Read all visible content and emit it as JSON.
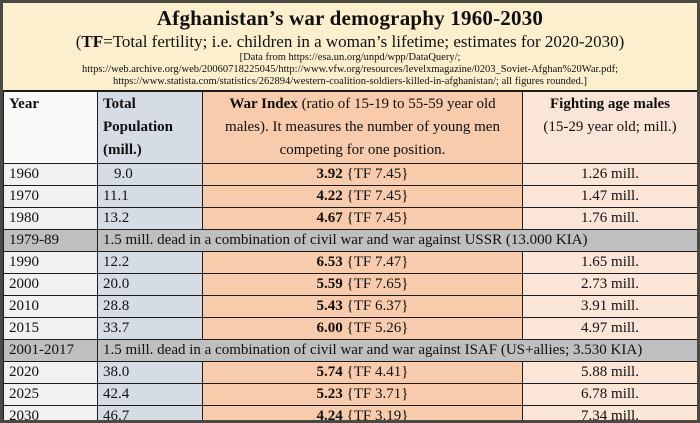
{
  "title": "Afghanistan’s war demography 1960-2030",
  "subtitle": {
    "prefix": "(",
    "bold": "TF",
    "rest": "=Total fertility; i.e. children in a woman’s lifetime; estimates for 2020-2030)"
  },
  "sources": {
    "line1": "[Data from https://esa.un.org/unpd/wpp/DataQuery/;",
    "line2": "https://web.archive.org/web/20060718225045/http://www.vfw.org/resources/levelxmagazine/0203_Soviet-Afghan%20War.pdf;",
    "line3": "https://www.statista.com/statistics/262894/western-coalition-soldiers-killed-in-afghanistan/; all figures rounded.]"
  },
  "colors": {
    "page_background": "#FBEFCD",
    "year_column": "#F1F1F0",
    "population_column": "#D6DCE4",
    "war_index_column": "#F8CBAD",
    "fighting_column": "#FBE5D6",
    "war_period_band": "#BFBFBF",
    "border": "#1c1c1c"
  },
  "table": {
    "headers": {
      "year": "Year",
      "population": "Total Population (mill.)",
      "war_index_bold": "War Index",
      "war_index_rest": " (ratio of 15-19 to 55-59 year old males). It measures the number of young men competing for one position.",
      "fighting_bold": "Fighting age males",
      "fighting_rest": "(15-29 year old; mill.)"
    },
    "rows": [
      {
        "year": "1960",
        "population": "9.0",
        "war_index": "3.92",
        "tf": "{TF 7.45}",
        "fighting": "1.26 mill."
      },
      {
        "year": "1970",
        "population": "11.1",
        "war_index": "4.22",
        "tf": "{TF 7.45}",
        "fighting": "1.47 mill."
      },
      {
        "year": "1980",
        "population": "13.2",
        "war_index": "4.67",
        "tf": "{TF 7.45}",
        "fighting": "1.76 mill."
      },
      {
        "year": "1979-89",
        "note": "1.5 mill. dead in a combination of civil war and war against USSR (13.000 KIA)"
      },
      {
        "year": "1990",
        "population": "12.2",
        "war_index": "6.53",
        "tf": "{TF 7.47}",
        "fighting": "1.65 mill."
      },
      {
        "year": "2000",
        "population": "20.0",
        "war_index": "5.59",
        "tf": "{TF 7.65}",
        "fighting": "2.73 mill."
      },
      {
        "year": "2010",
        "population": "28.8",
        "war_index": "5.43",
        "tf": "{TF 6.37}",
        "fighting": "3.91 mill."
      },
      {
        "year": "2015",
        "population": "33.7",
        "war_index": "6.00",
        "tf": "{TF 5.26}",
        "fighting": "4.97 mill."
      },
      {
        "year": "2001-2017",
        "note": "1.5 mill. dead in a combination of civil war and war against ISAF (US+allies; 3.530 KIA)"
      },
      {
        "year": "2020",
        "population": "38.0",
        "war_index": "5.74",
        "tf": "{TF 4.41}",
        "fighting": "5.88 mill."
      },
      {
        "year": "2025",
        "population": "42.4",
        "war_index": "5.23",
        "tf": "{TF 3.71}",
        "fighting": "6.78 mill."
      },
      {
        "year": "2030",
        "population": "46.7",
        "war_index": "4.24",
        "tf": "{TF 3.19}",
        "fighting": "7.34 mill."
      }
    ]
  },
  "chart_data": {
    "type": "table",
    "title": "Afghanistan’s war demography 1960-2030",
    "columns": [
      "Year",
      "Total Population (mill.)",
      "War Index",
      "Total fertility (TF)",
      "Fighting age males 15-29 (mill.)"
    ],
    "x": [
      1960,
      1970,
      1980,
      1990,
      2000,
      2010,
      2015,
      2020,
      2025,
      2030
    ],
    "series": [
      {
        "name": "Total Population (mill.)",
        "values": [
          9.0,
          11.1,
          13.2,
          12.2,
          20.0,
          28.8,
          33.7,
          38.0,
          42.4,
          46.7
        ]
      },
      {
        "name": "War Index",
        "values": [
          3.92,
          4.22,
          4.67,
          6.53,
          5.59,
          5.43,
          6.0,
          5.74,
          5.23,
          4.24
        ]
      },
      {
        "name": "Total fertility (TF)",
        "values": [
          7.45,
          7.45,
          7.45,
          7.47,
          7.65,
          6.37,
          5.26,
          4.41,
          3.71,
          3.19
        ]
      },
      {
        "name": "Fighting age males (mill.)",
        "values": [
          1.26,
          1.47,
          1.76,
          1.65,
          2.73,
          3.91,
          4.97,
          5.88,
          6.78,
          7.34
        ]
      }
    ],
    "annotations": [
      {
        "period": "1979-89",
        "text": "1.5 mill. dead in a combination of civil war and war against USSR (13.000 KIA)"
      },
      {
        "period": "2001-2017",
        "text": "1.5 mill. dead in a combination of civil war and war against ISAF (US+allies; 3.530 KIA)"
      }
    ]
  }
}
